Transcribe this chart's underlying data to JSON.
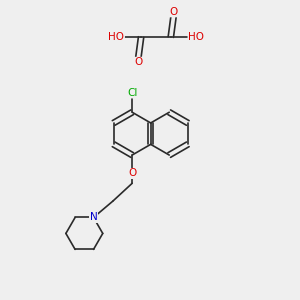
{
  "background_color": "#efefef",
  "bond_color": "#2a2a2a",
  "bond_width": 1.2,
  "atom_colors": {
    "O": "#dd0000",
    "N": "#0000cc",
    "Cl": "#00aa00",
    "H": "#888888"
  },
  "font_size": 7.5
}
